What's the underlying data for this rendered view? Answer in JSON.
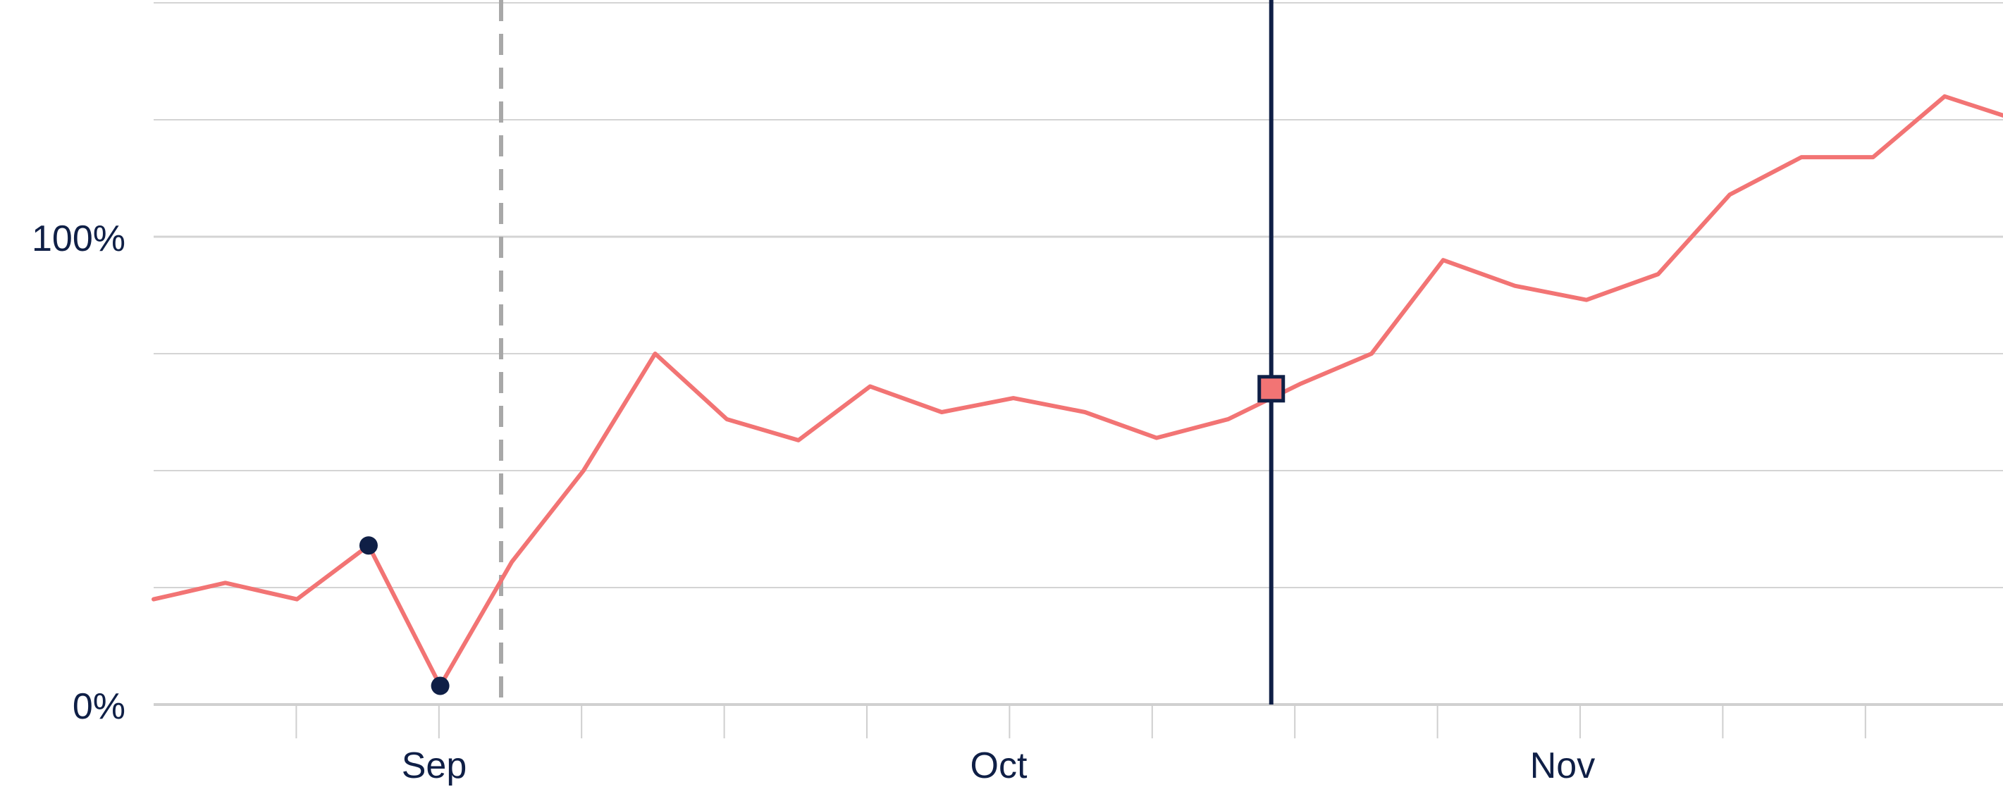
{
  "chart_data": {
    "type": "line",
    "title": "",
    "xlabel": "",
    "ylabel": "",
    "x_tick_labels": [
      "Sep",
      "Oct",
      "Nov"
    ],
    "y_tick_labels": [
      "0%",
      "100%"
    ],
    "ylim": [
      0,
      150
    ],
    "grid": true,
    "series": [
      {
        "color": "#f27474",
        "x": [
          0,
          1,
          2,
          3,
          4,
          5,
          6,
          7,
          8,
          9,
          10,
          11,
          12,
          13,
          14,
          15,
          16,
          17,
          18,
          19,
          20,
          21,
          22,
          23,
          24,
          25,
          26
        ],
        "values": [
          22.5,
          26,
          22.5,
          34,
          4,
          30.5,
          50,
          75,
          61,
          56.5,
          68,
          62.5,
          65.5,
          62.5,
          57,
          61,
          68.5,
          75,
          95,
          89.5,
          86.5,
          92,
          109,
          117,
          117,
          130,
          125
        ]
      }
    ],
    "highlighted_points": [
      {
        "x": 3,
        "value": 34,
        "color": "#0f1f46"
      },
      {
        "x": 4,
        "value": 4,
        "color": "#0f1f46"
      }
    ],
    "dashed_marker_x": 4.85,
    "cursor": {
      "x": 15.6,
      "value": 67.5,
      "marker_color": "#f27474",
      "line_color": "#0f1f46"
    }
  }
}
